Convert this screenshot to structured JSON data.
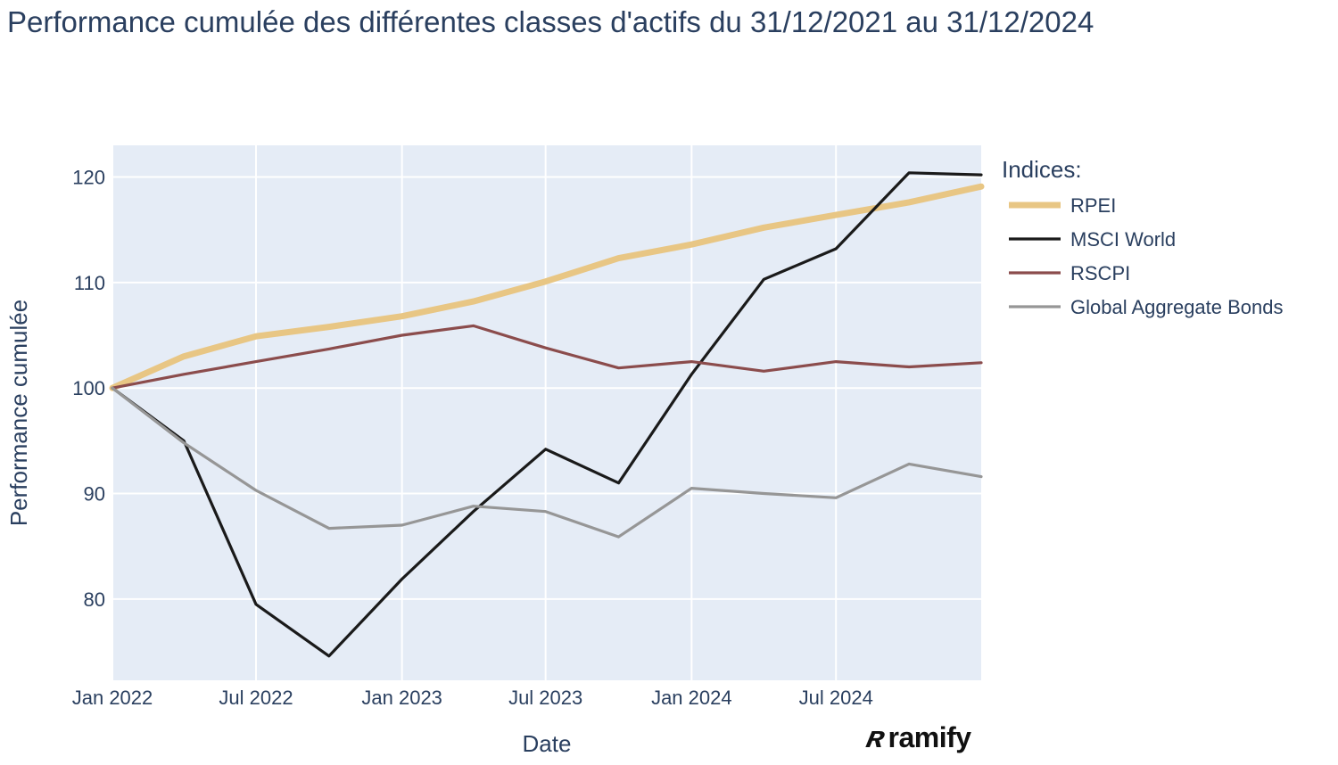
{
  "chart_data": {
    "type": "line",
    "title": "Performance cumulée des différentes classes d'actifs du 31/12/2021 au 31/12/2024",
    "xlabel": "Date",
    "ylabel": "Performance cumulée",
    "x": [
      "2022-01-01",
      "2022-04-01",
      "2022-07-01",
      "2022-10-01",
      "2023-01-01",
      "2023-04-01",
      "2023-07-01",
      "2023-10-01",
      "2024-01-01",
      "2024-04-01",
      "2024-07-01",
      "2024-10-01",
      "2024-12-31"
    ],
    "x_ticks": [
      "Jan 2022",
      "Jul 2022",
      "Jan 2023",
      "Jul 2023",
      "Jan 2024",
      "Jul 2024"
    ],
    "y_ticks": [
      "80",
      "90",
      "100",
      "110",
      "120"
    ],
    "ylim": [
      72.3,
      123
    ],
    "legend_title": "Indices:",
    "series": [
      {
        "name": "RPEI",
        "color": "#e8c684",
        "values": [
          100,
          103.0,
          104.9,
          105.8,
          106.8,
          108.2,
          110.1,
          112.3,
          113.6,
          115.2,
          116.4,
          117.6,
          119.1
        ]
      },
      {
        "name": "MSCI World",
        "color": "#1a1a1a",
        "values": [
          100,
          95.0,
          79.5,
          74.6,
          81.9,
          88.3,
          94.2,
          91.0,
          101.3,
          110.3,
          113.2,
          120.4,
          120.2
        ]
      },
      {
        "name": "RSCPI",
        "color": "#8b4c4c",
        "values": [
          100,
          101.3,
          102.5,
          103.7,
          105.0,
          105.9,
          103.8,
          101.9,
          102.5,
          101.6,
          102.5,
          102.0,
          102.4
        ]
      },
      {
        "name": "Global Aggregate Bonds",
        "color": "#969696",
        "values": [
          100,
          94.8,
          90.3,
          86.7,
          87.0,
          88.8,
          88.3,
          85.9,
          90.5,
          90.0,
          89.6,
          92.8,
          91.6
        ]
      }
    ]
  },
  "brand": {
    "name": "ramify"
  }
}
